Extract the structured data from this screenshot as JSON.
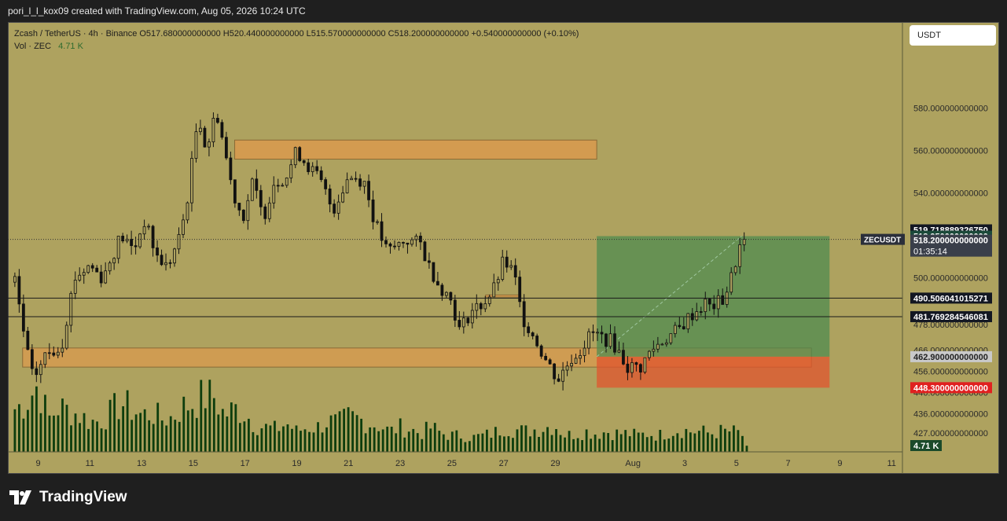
{
  "header": {
    "credit": "pori_l_l_kox09 created with TradingView.com, Aug 05, 2026 10:24 UTC"
  },
  "legend": {
    "line1": "Zcash / TetherUS · 4h · Binance  O517.680000000000  H520.440000000000  L515.570000000000  C518.200000000000  +0.540000000000 (+0.10%)",
    "line2_prefix": "Vol · ZEC",
    "line2_value": "4.71 K"
  },
  "currency_button": "USDT",
  "brand": "TradingView",
  "colors": {
    "background": "#aea25f",
    "candle": "#111111",
    "volume": "#0d3d0d",
    "supply_zone": "#d99a4e",
    "demand_zone": "#d99a4e",
    "profit_zone": "#4c8a4f",
    "loss_zone": "#e0542e",
    "sl_label": "#e02020"
  },
  "chart_data": {
    "type": "candlestick",
    "symbol": "ZECUSDT",
    "interval": "4h",
    "y_axis": {
      "min": 427,
      "max": 590,
      "ticks": [
        {
          "value": 580,
          "label": "580.000000000000"
        },
        {
          "value": 560,
          "label": "560.000000000000"
        },
        {
          "value": 540,
          "label": "540.000000000000"
        },
        {
          "value": 500,
          "label": "500.000000000000"
        },
        {
          "value": 478,
          "label": "478.000000000000"
        },
        {
          "value": 466,
          "label": "466.000000000000"
        },
        {
          "value": 456,
          "label": "456.000000000000"
        },
        {
          "value": 446,
          "label": "446.000000000000"
        },
        {
          "value": 436,
          "label": "436.000000000000"
        },
        {
          "value": 427,
          "label": "427.000000000000"
        }
      ]
    },
    "x_axis": {
      "ticks": [
        {
          "day": 9,
          "label": "9"
        },
        {
          "day": 11,
          "label": "11"
        },
        {
          "day": 13,
          "label": "13"
        },
        {
          "day": 15,
          "label": "15"
        },
        {
          "day": 17,
          "label": "17"
        },
        {
          "day": 19,
          "label": "19"
        },
        {
          "day": 21,
          "label": "21"
        },
        {
          "day": 23,
          "label": "23"
        },
        {
          "day": 25,
          "label": "25"
        },
        {
          "day": 27,
          "label": "27"
        },
        {
          "day": 29,
          "label": "29"
        },
        {
          "day": 32,
          "label": "Aug"
        },
        {
          "day": 34,
          "label": "3"
        },
        {
          "day": 36,
          "label": "5"
        },
        {
          "day": 38,
          "label": "7"
        },
        {
          "day": 40,
          "label": "9"
        },
        {
          "day": 42,
          "label": "11"
        }
      ]
    },
    "price_path": [
      [
        8.1,
        498
      ],
      [
        8.5,
        470
      ],
      [
        8.8,
        452
      ],
      [
        9.3,
        464
      ],
      [
        9.9,
        468
      ],
      [
        10.4,
        500
      ],
      [
        11.0,
        506
      ],
      [
        11.5,
        500
      ],
      [
        12.2,
        520
      ],
      [
        12.7,
        513
      ],
      [
        13.1,
        527
      ],
      [
        13.6,
        510
      ],
      [
        14.0,
        505
      ],
      [
        14.5,
        520
      ],
      [
        14.8,
        540
      ],
      [
        15.2,
        578
      ],
      [
        15.5,
        560
      ],
      [
        15.9,
        579
      ],
      [
        16.3,
        555
      ],
      [
        16.5,
        542
      ],
      [
        16.9,
        528
      ],
      [
        17.3,
        545
      ],
      [
        17.7,
        528
      ],
      [
        18.1,
        545
      ],
      [
        18.6,
        548
      ],
      [
        19.0,
        560
      ],
      [
        19.5,
        552
      ],
      [
        19.9,
        546
      ],
      [
        20.4,
        532
      ],
      [
        21.0,
        548
      ],
      [
        21.6,
        546
      ],
      [
        22.0,
        527
      ],
      [
        22.5,
        512
      ],
      [
        23.2,
        518
      ],
      [
        23.8,
        516
      ],
      [
        24.1,
        506
      ],
      [
        24.5,
        497
      ],
      [
        25.0,
        489
      ],
      [
        25.3,
        475
      ],
      [
        25.7,
        484
      ],
      [
        26.2,
        488
      ],
      [
        26.6,
        494
      ],
      [
        27.0,
        508
      ],
      [
        27.4,
        502
      ],
      [
        27.7,
        482
      ],
      [
        28.2,
        472
      ],
      [
        28.6,
        462
      ],
      [
        29.1,
        452
      ],
      [
        29.6,
        462
      ],
      [
        29.9,
        465
      ],
      [
        30.4,
        474
      ],
      [
        31.2,
        470
      ],
      [
        31.8,
        458
      ],
      [
        32.3,
        458
      ],
      [
        32.7,
        466
      ],
      [
        33.1,
        470
      ],
      [
        33.8,
        476
      ],
      [
        34.2,
        482
      ],
      [
        34.8,
        488
      ],
      [
        35.0,
        486
      ],
      [
        35.5,
        490
      ],
      [
        35.8,
        500
      ],
      [
        36.1,
        514
      ],
      [
        36.3,
        518.2
      ]
    ],
    "volume_path": [
      [
        8.1,
        21
      ],
      [
        8.5,
        24
      ],
      [
        9.0,
        33
      ],
      [
        9.4,
        16
      ],
      [
        9.8,
        22
      ],
      [
        10.2,
        20
      ],
      [
        10.6,
        18
      ],
      [
        11.0,
        15
      ],
      [
        11.4,
        15
      ],
      [
        11.8,
        19
      ],
      [
        12.2,
        24
      ],
      [
        12.6,
        21
      ],
      [
        13.0,
        18
      ],
      [
        13.4,
        19
      ],
      [
        13.8,
        16
      ],
      [
        14.2,
        17
      ],
      [
        14.6,
        22
      ],
      [
        15.0,
        24
      ],
      [
        15.4,
        27
      ],
      [
        15.8,
        27
      ],
      [
        16.2,
        18
      ],
      [
        16.6,
        21
      ],
      [
        17.0,
        19
      ],
      [
        17.4,
        13
      ],
      [
        17.8,
        12
      ],
      [
        18.2,
        11
      ],
      [
        18.6,
        14
      ],
      [
        19.0,
        10
      ],
      [
        19.4,
        12
      ],
      [
        19.8,
        12
      ],
      [
        20.2,
        15
      ],
      [
        20.6,
        14
      ],
      [
        21.0,
        17
      ],
      [
        21.4,
        16
      ],
      [
        21.8,
        14
      ],
      [
        22.2,
        13
      ],
      [
        22.6,
        10
      ],
      [
        23.0,
        12
      ],
      [
        23.4,
        11
      ],
      [
        23.8,
        9
      ],
      [
        24.2,
        12
      ],
      [
        24.6,
        9
      ],
      [
        25.0,
        8
      ],
      [
        25.4,
        8
      ],
      [
        25.8,
        7
      ],
      [
        26.2,
        8
      ],
      [
        26.6,
        9
      ],
      [
        27.0,
        12
      ],
      [
        27.4,
        11
      ],
      [
        27.8,
        10
      ],
      [
        28.2,
        11
      ],
      [
        28.6,
        12
      ],
      [
        29.0,
        13
      ],
      [
        29.4,
        8
      ],
      [
        29.8,
        9
      ],
      [
        30.2,
        10
      ],
      [
        30.6,
        9
      ],
      [
        31.0,
        10
      ],
      [
        31.4,
        9
      ],
      [
        31.8,
        9
      ],
      [
        32.2,
        8
      ],
      [
        32.6,
        9
      ],
      [
        33.0,
        8
      ],
      [
        33.4,
        10
      ],
      [
        33.8,
        11
      ],
      [
        34.2,
        10
      ],
      [
        34.6,
        10
      ],
      [
        35.0,
        9
      ],
      [
        35.4,
        10
      ],
      [
        35.8,
        10
      ],
      [
        36.2,
        9
      ],
      [
        36.4,
        3
      ]
    ],
    "volume_max": 40,
    "volume_current_label": "4.71 K",
    "zones": [
      {
        "name": "supply",
        "x1": 16.6,
        "x2": 30.6,
        "y1": 556,
        "y2": 565
      },
      {
        "name": "demand",
        "x1": 8.4,
        "x2": 38.9,
        "y1": 458,
        "y2": 467
      },
      {
        "name": "profit",
        "x1": 30.6,
        "x2": 39.6,
        "y1": 462.9,
        "y2": 519.72
      },
      {
        "name": "loss",
        "x1": 30.6,
        "x2": 39.6,
        "y1": 448.3,
        "y2": 462.9
      },
      {
        "name": "band",
        "x1": 26.3,
        "x2": 27.6,
        "y1": 491,
        "y2": 492
      }
    ],
    "trade_line": {
      "x1": 30.6,
      "y1": 462.9,
      "x2": 36.2,
      "y2": 519.72
    },
    "horizontal_lines": [
      {
        "value": 490.506041015271,
        "label": "490.506041015271"
      },
      {
        "value": 481.769284546081,
        "label": "481.769284546081"
      }
    ],
    "current_price": {
      "value": 518.2,
      "symbol": "ZECUSDT",
      "label": "518.200000000000",
      "countdown": "01:35:14"
    },
    "price_labels": [
      {
        "value": 519.71888932675,
        "label": "519.718889326750",
        "bg": "#131722",
        "fg": "#ffffff"
      },
      {
        "value": 518.95,
        "label": "518.950000000000",
        "bg": "#1b4a3a",
        "fg": "#ffffff"
      },
      {
        "value": 462.9,
        "label": "462.900000000000",
        "bg": "#c9c9c9",
        "fg": "#222222"
      },
      {
        "value": 448.3,
        "label": "448.300000000000",
        "bg": "#e02020",
        "fg": "#ffffff"
      }
    ]
  }
}
